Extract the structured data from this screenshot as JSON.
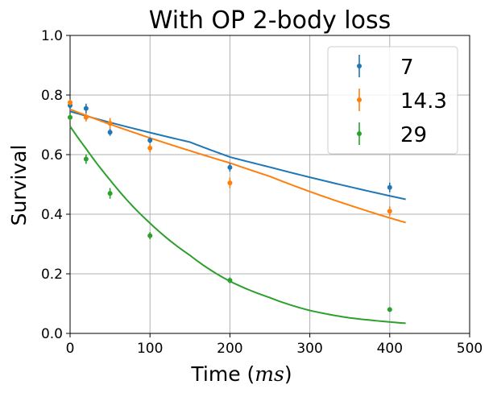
{
  "chart_data": {
    "type": "scatter",
    "title": "With OP 2-body loss",
    "xlabel": "Time (ms)",
    "ylabel": "Survival",
    "xlim": [
      0,
      500
    ],
    "ylim": [
      0,
      1.0
    ],
    "xticks": [
      0,
      100,
      200,
      300,
      400,
      500
    ],
    "yticks": [
      0.0,
      0.2,
      0.4,
      0.6,
      0.8,
      1.0
    ],
    "xtick_labels": [
      "0",
      "100",
      "200",
      "300",
      "400",
      "500"
    ],
    "ytick_labels": [
      "0.0",
      "0.2",
      "0.4",
      "0.6",
      "0.8",
      "1.0"
    ],
    "grid": true,
    "legend_position": "top-right",
    "series": [
      {
        "name": "7",
        "color": "#1f77b4",
        "x": [
          0,
          20,
          50,
          100,
          200,
          400
        ],
        "y": [
          0.765,
          0.755,
          0.675,
          0.648,
          0.557,
          0.49
        ],
        "yerr": [
          0.012,
          0.016,
          0.012,
          0.01,
          0.014,
          0.016
        ],
        "fit": {
          "x": [
            0,
            50,
            100,
            150,
            200,
            250,
            300,
            350,
            420
          ],
          "y": [
            0.745,
            0.708,
            0.674,
            0.642,
            0.592,
            0.558,
            0.524,
            0.492,
            0.45
          ]
        }
      },
      {
        "name": "14.3",
        "color": "#ff7f0e",
        "x": [
          0,
          20,
          50,
          100,
          200,
          400
        ],
        "y": [
          0.775,
          0.725,
          0.705,
          0.622,
          0.505,
          0.41
        ],
        "yerr": [
          0.01,
          0.014,
          0.018,
          0.014,
          0.018,
          0.016
        ],
        "fit": {
          "x": [
            0,
            50,
            100,
            150,
            200,
            250,
            300,
            350,
            420
          ],
          "y": [
            0.752,
            0.702,
            0.656,
            0.613,
            0.572,
            0.527,
            0.476,
            0.43,
            0.372
          ]
        }
      },
      {
        "name": "29",
        "color": "#2ca02c",
        "x": [
          0,
          20,
          50,
          100,
          200,
          400
        ],
        "y": [
          0.725,
          0.585,
          0.47,
          0.328,
          0.178,
          0.08
        ],
        "yerr": [
          0.012,
          0.016,
          0.018,
          0.012,
          0.01,
          0.008
        ],
        "fit": {
          "x": [
            0,
            20,
            50,
            100,
            150,
            200,
            250,
            300,
            350,
            420
          ],
          "y": [
            0.695,
            0.62,
            0.515,
            0.37,
            0.262,
            0.175,
            0.12,
            0.077,
            0.052,
            0.034
          ]
        }
      }
    ]
  }
}
